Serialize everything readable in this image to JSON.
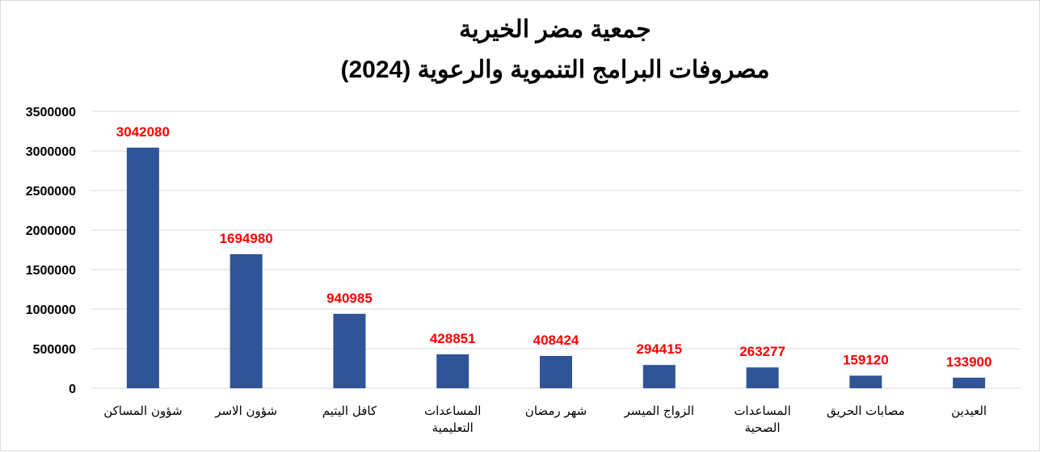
{
  "chart_data": {
    "type": "bar",
    "title": "جمعية مضر الخيرية",
    "subtitle": "مصروفات البرامج التنموية والرعوية (2024)",
    "categories": [
      [
        "شؤون المساكن"
      ],
      [
        "شؤون الاسر"
      ],
      [
        "كافل اليتيم"
      ],
      [
        "المساعدات",
        "التعليمية"
      ],
      [
        "شهر رمضان"
      ],
      [
        "الزواج الميسر"
      ],
      [
        "المساعدات",
        "الصحية"
      ],
      [
        "مصابات الحريق"
      ],
      [
        "العيدين"
      ]
    ],
    "values": [
      3042080,
      1694980,
      940985,
      428851,
      408424,
      294415,
      263277,
      159120,
      133900
    ],
    "ylim": [
      0,
      3500000
    ],
    "yticks": [
      "0",
      "500000",
      "1000000",
      "1500000",
      "2000000",
      "2500000",
      "3000000",
      "3500000"
    ],
    "grid": true,
    "bar_color": "#2f5597",
    "label_color": "#ff0000"
  }
}
